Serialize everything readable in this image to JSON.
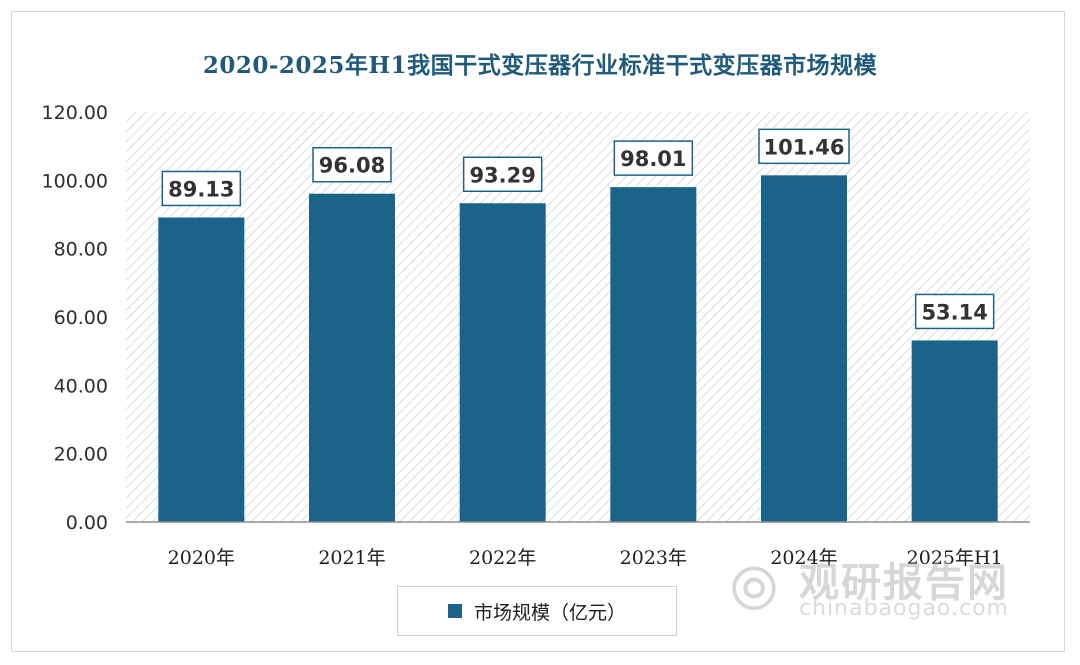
{
  "chart_data": {
    "type": "bar",
    "title": "2020-2025年H1我国干式变压器行业标准干式变压器市场规模",
    "categories": [
      "2020年",
      "2021年",
      "2022年",
      "2023年",
      "2024年",
      "2025年H1"
    ],
    "series": [
      {
        "name": "市场规模（亿元）",
        "values": [
          89.13,
          96.08,
          93.29,
          98.01,
          101.46,
          53.14
        ]
      }
    ],
    "value_labels": [
      "89.13",
      "96.08",
      "93.29",
      "98.01",
      "101.46",
      "53.14"
    ],
    "yticks": [
      "0.00",
      "20.00",
      "40.00",
      "60.00",
      "80.00",
      "100.00",
      "120.00"
    ],
    "ylim": [
      0,
      120
    ],
    "xlabel": "",
    "ylabel": "",
    "legend_position": "bottom",
    "grid": false
  },
  "colors": {
    "bar": "#1b6389",
    "title": "#1f5a7a",
    "hatch": "#d9d9d9"
  },
  "watermark": {
    "icon": "chinabaogao-logo-icon",
    "name": "观研报告网",
    "url": "chinabaogao.com"
  }
}
